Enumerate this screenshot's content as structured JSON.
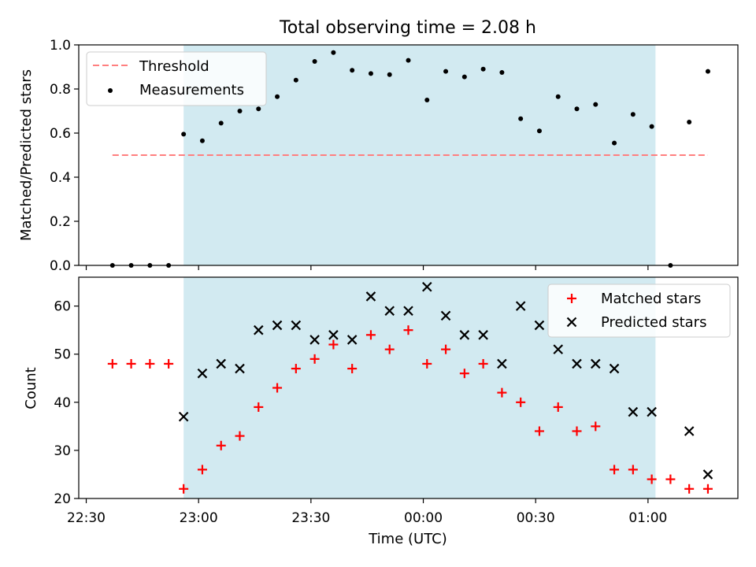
{
  "chart_data": [
    {
      "type": "scatter",
      "title": "Total observing time = 2.08 h",
      "ylabel": "Matched/Predicted stars",
      "ylim": [
        0,
        1.0
      ],
      "yticks": [
        "0.0",
        "0.2",
        "0.4",
        "0.6",
        "0.8",
        "1.0"
      ],
      "shaded_interval": [
        "22:56",
        "01:02"
      ],
      "threshold": {
        "name": "Threshold",
        "value": 0.5,
        "x_range": [
          "22:37",
          "01:16"
        ]
      },
      "legend_position": "upper-left",
      "series": [
        {
          "name": "Measurements",
          "x": [
            "22:37",
            "22:42",
            "22:47",
            "22:52",
            "22:56",
            "23:01",
            "23:06",
            "23:11",
            "23:16",
            "23:21",
            "23:26",
            "23:31",
            "23:36",
            "23:41",
            "23:46",
            "23:51",
            "23:56",
            "00:01",
            "00:06",
            "00:11",
            "00:16",
            "00:21",
            "00:26",
            "00:31",
            "00:36",
            "00:41",
            "00:46",
            "00:51",
            "00:56",
            "01:01",
            "01:06",
            "01:11",
            "01:16"
          ],
          "values": [
            0.0,
            0.0,
            0.0,
            0.0,
            0.595,
            0.565,
            0.645,
            0.7,
            0.71,
            0.765,
            0.84,
            0.925,
            0.965,
            0.885,
            0.87,
            0.865,
            0.93,
            0.75,
            0.88,
            0.855,
            0.89,
            0.875,
            0.665,
            0.61,
            0.765,
            0.71,
            0.73,
            0.555,
            0.685,
            0.63,
            0.0,
            0.65,
            0.88
          ]
        }
      ]
    },
    {
      "type": "scatter",
      "xlabel": "Time (UTC)",
      "ylabel": "Count",
      "ylim": [
        20,
        66
      ],
      "yticks": [
        "20",
        "30",
        "40",
        "50",
        "60"
      ],
      "xticks": [
        "22:30",
        "23:00",
        "23:30",
        "00:00",
        "00:30",
        "01:00"
      ],
      "shaded_interval": [
        "22:56",
        "01:02"
      ],
      "legend_position": "upper-right",
      "series": [
        {
          "name": "Matched stars",
          "color": "#ff0000",
          "x": [
            "22:37",
            "22:42",
            "22:47",
            "22:52",
            "22:56",
            "23:01",
            "23:06",
            "23:11",
            "23:16",
            "23:21",
            "23:26",
            "23:31",
            "23:36",
            "23:41",
            "23:46",
            "23:51",
            "23:56",
            "00:01",
            "00:06",
            "00:11",
            "00:16",
            "00:21",
            "00:26",
            "00:31",
            "00:36",
            "00:41",
            "00:46",
            "00:51",
            "00:56",
            "01:01",
            "01:06",
            "01:11",
            "01:16"
          ],
          "values": [
            48,
            48,
            48,
            48,
            22,
            26,
            31,
            33,
            39,
            43,
            47,
            49,
            52,
            47,
            54,
            51,
            55,
            48,
            51,
            46,
            48,
            42,
            40,
            34,
            39,
            34,
            35,
            26,
            26,
            24,
            24,
            22,
            22
          ]
        },
        {
          "name": "Predicted stars",
          "color": "#000000",
          "x": [
            "22:56",
            "23:01",
            "23:06",
            "23:11",
            "23:16",
            "23:21",
            "23:26",
            "23:31",
            "23:36",
            "23:41",
            "23:46",
            "23:51",
            "23:56",
            "00:01",
            "00:06",
            "00:11",
            "00:16",
            "00:21",
            "00:26",
            "00:31",
            "00:36",
            "00:41",
            "00:46",
            "00:51",
            "00:56",
            "01:01",
            "01:11",
            "01:16"
          ],
          "values": [
            37,
            46,
            48,
            47,
            55,
            56,
            56,
            53,
            54,
            53,
            62,
            59,
            59,
            64,
            58,
            54,
            54,
            48,
            60,
            56,
            51,
            48,
            48,
            47,
            38,
            38,
            34,
            25
          ]
        }
      ]
    }
  ],
  "colors": {
    "shade": "#add8e6",
    "threshold": "#ff7f7f",
    "matched": "#ff0000",
    "predicted": "#000000",
    "measurement": "#000000"
  }
}
